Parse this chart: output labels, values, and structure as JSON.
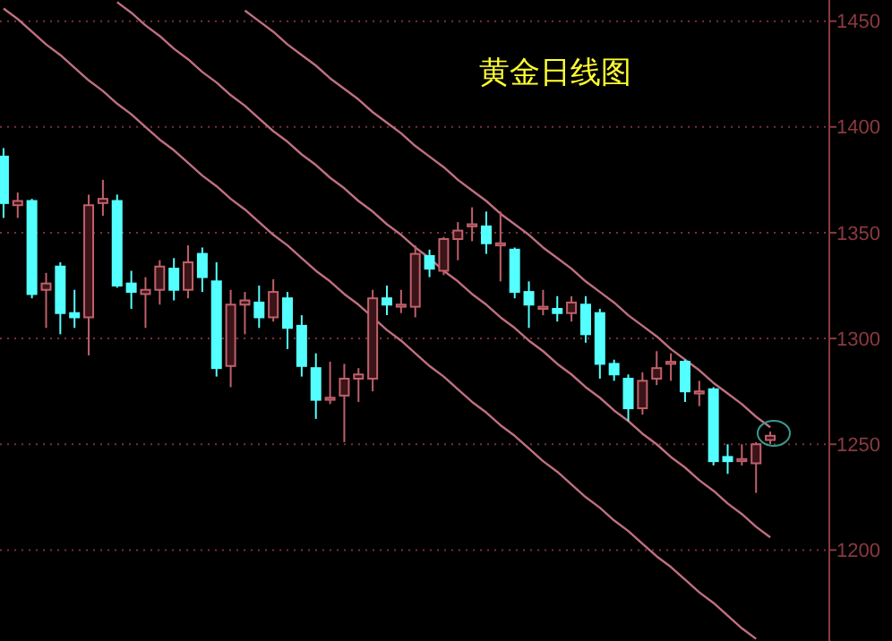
{
  "chart_data": {
    "type": "candlestick",
    "title": "黄金日线图",
    "categories": [
      null,
      null,
      null,
      null,
      null,
      null,
      null,
      null,
      null,
      null,
      null,
      null,
      null,
      null,
      null,
      null,
      null,
      null,
      null,
      null,
      null,
      null,
      null,
      null,
      null,
      null,
      null,
      null,
      null,
      null,
      null,
      null,
      null,
      null,
      null,
      null,
      null,
      null,
      null,
      null,
      null,
      null,
      null,
      null,
      null,
      null,
      null,
      null,
      null,
      null,
      null,
      null,
      null,
      null,
      null
    ],
    "ohlc": [
      [
        1386,
        1390,
        1357,
        1364
      ],
      [
        1363,
        1369,
        1357,
        1365
      ],
      [
        1365,
        1366,
        1319,
        1321
      ],
      [
        1323,
        1331,
        1305,
        1326
      ],
      [
        1334,
        1336,
        1302,
        1312
      ],
      [
        1312,
        1323,
        1305,
        1310
      ],
      [
        1310,
        1368,
        1292,
        1363
      ],
      [
        1364,
        1375,
        1358,
        1366
      ],
      [
        1365,
        1368,
        1324,
        1325
      ],
      [
        1326,
        1332,
        1314,
        1322
      ],
      [
        1321,
        1329,
        1305,
        1323
      ],
      [
        1323,
        1337,
        1316,
        1334
      ],
      [
        1333,
        1338,
        1318,
        1323
      ],
      [
        1323,
        1344,
        1319,
        1336
      ],
      [
        1340,
        1343,
        1322,
        1329
      ],
      [
        1327,
        1336,
        1282,
        1286
      ],
      [
        1287,
        1323,
        1277,
        1316
      ],
      [
        1316,
        1322,
        1302,
        1318
      ],
      [
        1317,
        1325,
        1305,
        1310
      ],
      [
        1310,
        1328,
        1308,
        1322
      ],
      [
        1319,
        1322,
        1295,
        1305
      ],
      [
        1306,
        1311,
        1282,
        1287
      ],
      [
        1286,
        1293,
        1262,
        1271
      ],
      [
        1271,
        1289,
        1269,
        1272
      ],
      [
        1273,
        1288,
        1251,
        1281
      ],
      [
        1281,
        1286,
        1270,
        1283
      ],
      [
        1281,
        1323,
        1275,
        1319
      ],
      [
        1319,
        1325,
        1311,
        1316
      ],
      [
        1315,
        1323,
        1312,
        1316
      ],
      [
        1315,
        1344,
        1310,
        1340
      ],
      [
        1339,
        1342,
        1329,
        1333
      ],
      [
        1332,
        1348,
        1330,
        1347
      ],
      [
        1347,
        1355,
        1337,
        1351
      ],
      [
        1353,
        1362,
        1346,
        1354
      ],
      [
        1353,
        1360,
        1340,
        1345
      ],
      [
        1344,
        1360,
        1327,
        1345
      ],
      [
        1342,
        1343,
        1319,
        1322
      ],
      [
        1322,
        1327,
        1305,
        1316
      ],
      [
        1314,
        1323,
        1311,
        1315
      ],
      [
        1314,
        1320,
        1308,
        1312
      ],
      [
        1312,
        1320,
        1308,
        1317
      ],
      [
        1316,
        1320,
        1298,
        1302
      ],
      [
        1312,
        1314,
        1281,
        1288
      ],
      [
        1288,
        1290,
        1280,
        1283
      ],
      [
        1281,
        1283,
        1261,
        1267
      ],
      [
        1267,
        1284,
        1264,
        1280
      ],
      [
        1281,
        1294,
        1278,
        1286
      ],
      [
        1288,
        1293,
        1280,
        1289
      ],
      [
        1289,
        1290,
        1270,
        1275
      ],
      [
        1274,
        1280,
        1268,
        1275
      ],
      [
        1276,
        1277,
        1240,
        1242
      ],
      [
        1244,
        1250,
        1236,
        1242
      ],
      [
        1242,
        1250,
        1240,
        1243
      ],
      [
        1241,
        1251,
        1227,
        1250
      ],
      [
        1252,
        1256,
        1250,
        1254
      ]
    ],
    "colors": [
      "#54ffff",
      "#c0606a",
      "#54ffff",
      "#c0606a",
      "#54ffff",
      "#54ffff",
      "#c0606a",
      "#c0606a",
      "#54ffff",
      "#54ffff",
      "#c0606a",
      "#c0606a",
      "#54ffff",
      "#c0606a",
      "#54ffff",
      "#54ffff",
      "#c0606a",
      "#c0606a",
      "#54ffff",
      "#c0606a",
      "#54ffff",
      "#54ffff",
      "#54ffff",
      "#c0606a",
      "#c0606a",
      "#c0606a",
      "#c0606a",
      "#54ffff",
      "#c0606a",
      "#c0606a",
      "#54ffff",
      "#c0606a",
      "#c0606a",
      "#c0606a",
      "#54ffff",
      "#c0606a",
      "#54ffff",
      "#54ffff",
      "#c0606a",
      "#54ffff",
      "#c0606a",
      "#54ffff",
      "#54ffff",
      "#54ffff",
      "#54ffff",
      "#c0606a",
      "#c0606a",
      "#c0606a",
      "#54ffff",
      "#c0606a",
      "#54ffff",
      "#54ffff",
      "#c0606a",
      "#c0606a",
      "#c0606a"
    ],
    "series": [
      {
        "type": "line",
        "color": "#c07080",
        "values": [
          null,
          null,
          null,
          null,
          null,
          null,
          null,
          null,
          null,
          null,
          null,
          null,
          null,
          null,
          null,
          null,
          null,
          1455,
          1450,
          1445,
          1439,
          1434,
          1429,
          1423,
          1418,
          1413,
          1407,
          1402,
          1397,
          1391,
          1386,
          1381,
          1375,
          1370,
          1365,
          1359,
          1354,
          1349,
          1343,
          1338,
          1333,
          1327,
          1322,
          1317,
          1311,
          1306,
          1301,
          1295,
          1290,
          1285,
          1279,
          1274,
          1269,
          1263,
          1258
        ]
      },
      {
        "type": "line",
        "color": "#c07080",
        "values": [
          null,
          null,
          null,
          null,
          null,
          null,
          null,
          null,
          1459,
          1454,
          1448,
          1443,
          1437,
          1432,
          1426,
          1421,
          1415,
          1410,
          1404,
          1398,
          1393,
          1387,
          1382,
          1376,
          1371,
          1365,
          1360,
          1354,
          1349,
          1343,
          1338,
          1332,
          1327,
          1321,
          1316,
          1310,
          1305,
          1299,
          1294,
          1288,
          1283,
          1277,
          1272,
          1266,
          1261,
          1255,
          1250,
          1244,
          1239,
          1233,
          1228,
          1222,
          1217,
          1211,
          1206
        ]
      },
      {
        "type": "line",
        "color": "#c07080",
        "values": [
          1456,
          1451,
          1445,
          1439,
          1434,
          1428,
          1422,
          1417,
          1411,
          1406,
          1400,
          1394,
          1389,
          1383,
          1377,
          1372,
          1366,
          1361,
          1355,
          1349,
          1344,
          1338,
          1332,
          1327,
          1321,
          1316,
          1310,
          1304,
          1299,
          1293,
          1287,
          1282,
          1276,
          1270,
          1265,
          1259,
          1254,
          1248,
          1242,
          1237,
          1231,
          1225,
          1220,
          1214,
          1209,
          1203,
          1197,
          1192,
          1186,
          1180,
          1175,
          1169,
          1163,
          1158,
          null
        ]
      }
    ],
    "ylim": [
      1157,
      1460
    ],
    "yticks": [
      1200,
      1250,
      1300,
      1350,
      1400,
      1450
    ],
    "tick_labels": "y",
    "grid": "y"
  }
}
